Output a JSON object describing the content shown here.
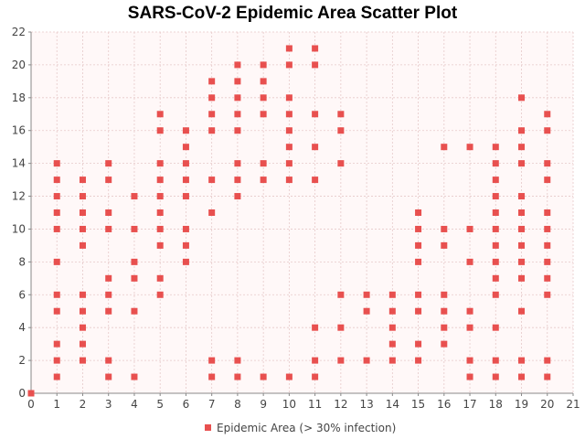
{
  "chart_data": {
    "type": "scatter",
    "title": "SARS-CoV-2 Epidemic Area Scatter Plot",
    "xlabel": "",
    "ylabel": "",
    "xlim": [
      0,
      21
    ],
    "ylim": [
      0,
      22
    ],
    "xticks": [
      0,
      1,
      2,
      3,
      4,
      5,
      6,
      7,
      8,
      9,
      10,
      11,
      12,
      13,
      14,
      15,
      16,
      17,
      18,
      19,
      20,
      21
    ],
    "yticks": [
      0,
      2,
      4,
      6,
      8,
      10,
      12,
      14,
      16,
      18,
      20,
      22
    ],
    "grid": true,
    "legend_position": "bottom",
    "colors": {
      "marker": "#e8504f",
      "plot_bg": "#fff8f8",
      "grid": "#e6c9c9"
    },
    "series": [
      {
        "name": "Epidemic Area (> 30% infection)",
        "points": [
          [
            0,
            0
          ],
          [
            1,
            1
          ],
          [
            1,
            2
          ],
          [
            1,
            3
          ],
          [
            1,
            5
          ],
          [
            1,
            6
          ],
          [
            1,
            8
          ],
          [
            1,
            10
          ],
          [
            1,
            11
          ],
          [
            1,
            12
          ],
          [
            1,
            13
          ],
          [
            1,
            14
          ],
          [
            2,
            2
          ],
          [
            2,
            3
          ],
          [
            2,
            4
          ],
          [
            2,
            5
          ],
          [
            2,
            6
          ],
          [
            2,
            9
          ],
          [
            2,
            10
          ],
          [
            2,
            11
          ],
          [
            2,
            12
          ],
          [
            2,
            13
          ],
          [
            3,
            1
          ],
          [
            3,
            2
          ],
          [
            3,
            5
          ],
          [
            3,
            6
          ],
          [
            3,
            7
          ],
          [
            3,
            10
          ],
          [
            3,
            11
          ],
          [
            3,
            13
          ],
          [
            3,
            14
          ],
          [
            4,
            1
          ],
          [
            4,
            5
          ],
          [
            4,
            7
          ],
          [
            4,
            8
          ],
          [
            4,
            10
          ],
          [
            4,
            12
          ],
          [
            5,
            6
          ],
          [
            5,
            7
          ],
          [
            5,
            9
          ],
          [
            5,
            10
          ],
          [
            5,
            11
          ],
          [
            5,
            12
          ],
          [
            5,
            13
          ],
          [
            5,
            14
          ],
          [
            5,
            16
          ],
          [
            5,
            17
          ],
          [
            6,
            8
          ],
          [
            6,
            9
          ],
          [
            6,
            10
          ],
          [
            6,
            12
          ],
          [
            6,
            13
          ],
          [
            6,
            14
          ],
          [
            6,
            15
          ],
          [
            6,
            16
          ],
          [
            7,
            1
          ],
          [
            7,
            2
          ],
          [
            7,
            11
          ],
          [
            7,
            13
          ],
          [
            7,
            16
          ],
          [
            7,
            17
          ],
          [
            7,
            18
          ],
          [
            7,
            19
          ],
          [
            8,
            1
          ],
          [
            8,
            2
          ],
          [
            8,
            12
          ],
          [
            8,
            13
          ],
          [
            8,
            14
          ],
          [
            8,
            16
          ],
          [
            8,
            17
          ],
          [
            8,
            18
          ],
          [
            8,
            19
          ],
          [
            8,
            20
          ],
          [
            9,
            1
          ],
          [
            9,
            13
          ],
          [
            9,
            14
          ],
          [
            9,
            17
          ],
          [
            9,
            18
          ],
          [
            9,
            19
          ],
          [
            9,
            20
          ],
          [
            10,
            1
          ],
          [
            10,
            13
          ],
          [
            10,
            14
          ],
          [
            10,
            15
          ],
          [
            10,
            16
          ],
          [
            10,
            17
          ],
          [
            10,
            18
          ],
          [
            10,
            20
          ],
          [
            10,
            21
          ],
          [
            11,
            1
          ],
          [
            11,
            2
          ],
          [
            11,
            4
          ],
          [
            11,
            13
          ],
          [
            11,
            15
          ],
          [
            11,
            17
          ],
          [
            11,
            20
          ],
          [
            11,
            21
          ],
          [
            12,
            2
          ],
          [
            12,
            4
          ],
          [
            12,
            6
          ],
          [
            12,
            14
          ],
          [
            12,
            16
          ],
          [
            12,
            17
          ],
          [
            13,
            2
          ],
          [
            13,
            5
          ],
          [
            13,
            6
          ],
          [
            14,
            2
          ],
          [
            14,
            3
          ],
          [
            14,
            4
          ],
          [
            14,
            5
          ],
          [
            14,
            6
          ],
          [
            15,
            2
          ],
          [
            15,
            3
          ],
          [
            15,
            5
          ],
          [
            15,
            6
          ],
          [
            15,
            8
          ],
          [
            15,
            9
          ],
          [
            15,
            10
          ],
          [
            15,
            11
          ],
          [
            16,
            3
          ],
          [
            16,
            4
          ],
          [
            16,
            5
          ],
          [
            16,
            6
          ],
          [
            16,
            9
          ],
          [
            16,
            10
          ],
          [
            16,
            15
          ],
          [
            17,
            1
          ],
          [
            17,
            2
          ],
          [
            17,
            4
          ],
          [
            17,
            5
          ],
          [
            17,
            8
          ],
          [
            17,
            10
          ],
          [
            17,
            15
          ],
          [
            18,
            1
          ],
          [
            18,
            2
          ],
          [
            18,
            4
          ],
          [
            18,
            6
          ],
          [
            18,
            7
          ],
          [
            18,
            8
          ],
          [
            18,
            9
          ],
          [
            18,
            10
          ],
          [
            18,
            11
          ],
          [
            18,
            12
          ],
          [
            18,
            13
          ],
          [
            18,
            14
          ],
          [
            18,
            15
          ],
          [
            19,
            1
          ],
          [
            19,
            2
          ],
          [
            19,
            5
          ],
          [
            19,
            7
          ],
          [
            19,
            8
          ],
          [
            19,
            9
          ],
          [
            19,
            10
          ],
          [
            19,
            11
          ],
          [
            19,
            12
          ],
          [
            19,
            14
          ],
          [
            19,
            15
          ],
          [
            19,
            16
          ],
          [
            19,
            18
          ],
          [
            20,
            1
          ],
          [
            20,
            2
          ],
          [
            20,
            6
          ],
          [
            20,
            7
          ],
          [
            20,
            8
          ],
          [
            20,
            9
          ],
          [
            20,
            10
          ],
          [
            20,
            11
          ],
          [
            20,
            13
          ],
          [
            20,
            14
          ],
          [
            20,
            16
          ],
          [
            20,
            17
          ]
        ]
      }
    ]
  }
}
